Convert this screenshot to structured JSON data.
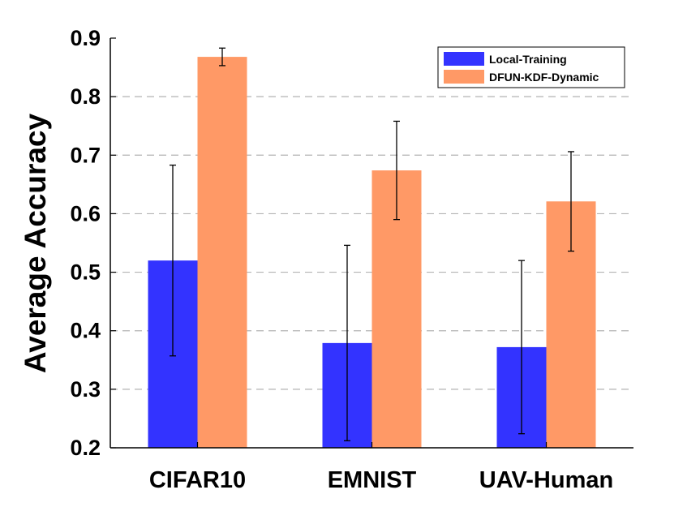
{
  "chart_data": {
    "type": "bar",
    "categories": [
      "CIFAR10",
      "EMNIST",
      "UAV-Human"
    ],
    "series": [
      {
        "name": "Local-Training",
        "color": "#3333ff",
        "values": [
          0.52,
          0.379,
          0.372
        ],
        "errors": [
          0.163,
          0.167,
          0.148
        ]
      },
      {
        "name": "DFUN-KDF-Dynamic",
        "color": "#ff9966",
        "values": [
          0.868,
          0.674,
          0.621
        ],
        "errors": [
          0.015,
          0.084,
          0.085
        ]
      }
    ],
    "xlabel": "",
    "ylabel": "Average Accuracy",
    "ylim": [
      0.2,
      0.9
    ],
    "yticks": [
      "0.2",
      "0.3",
      "0.4",
      "0.5",
      "0.6",
      "0.7",
      "0.8",
      "0.9"
    ],
    "grid": "horizontal-dashed",
    "legend_position": "top-right"
  }
}
